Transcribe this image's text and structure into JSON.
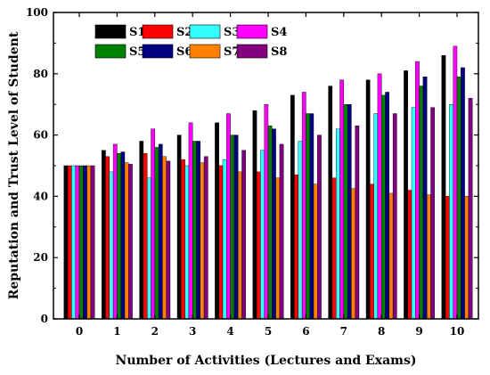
{
  "chart_data": {
    "type": "bar",
    "xlabel": "Number of Activities (Lectures and Exams)",
    "ylabel": "Reputation and Trust Level of Student",
    "ylim": [
      0,
      100
    ],
    "yticks": [
      "0",
      "20",
      "40",
      "60",
      "80",
      "100"
    ],
    "categories": [
      "0",
      "1",
      "2",
      "3",
      "4",
      "5",
      "6",
      "7",
      "8",
      "9",
      "10"
    ],
    "grid": false,
    "legend_position": "top-left",
    "series": [
      {
        "name": "S1",
        "color": "#000000",
        "values": [
          50,
          55,
          58,
          60,
          64,
          68,
          73,
          76,
          78,
          81,
          86
        ]
      },
      {
        "name": "S2",
        "color": "#ff0000",
        "values": [
          50,
          53,
          54,
          52,
          50,
          48,
          47,
          46,
          44,
          42,
          40
        ]
      },
      {
        "name": "S3",
        "color": "#33ffff",
        "values": [
          50,
          48,
          46,
          50,
          52,
          55,
          58,
          62,
          67,
          69,
          70
        ]
      },
      {
        "name": "S4",
        "color": "#ff00ff",
        "values": [
          50,
          57,
          62,
          64,
          67,
          70,
          74,
          78,
          80,
          84,
          89
        ]
      },
      {
        "name": "S5",
        "color": "#008000",
        "values": [
          50,
          54,
          56,
          58,
          60,
          63,
          67,
          70,
          73,
          76,
          79
        ]
      },
      {
        "name": "S6",
        "color": "#000080",
        "values": [
          50,
          54.5,
          57,
          58,
          60,
          62,
          67,
          70,
          74,
          79,
          82
        ]
      },
      {
        "name": "S7",
        "color": "#ff8000",
        "values": [
          50,
          51,
          53,
          51,
          48,
          46,
          44,
          42.5,
          41,
          40.5,
          40
        ]
      },
      {
        "name": "S8",
        "color": "#800080",
        "values": [
          50,
          50.5,
          51.5,
          53,
          55,
          57,
          60,
          63,
          67,
          69,
          72
        ]
      }
    ]
  }
}
